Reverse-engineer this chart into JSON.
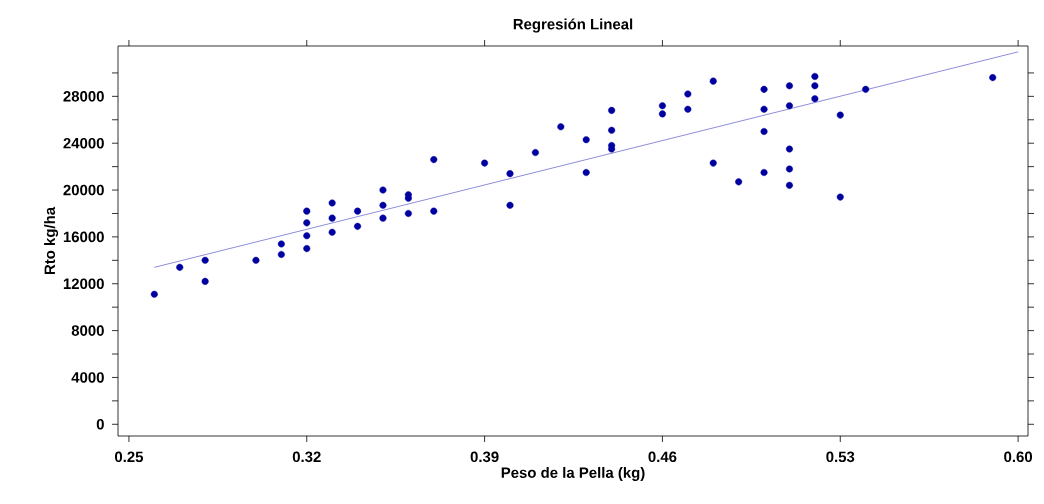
{
  "chart_data": {
    "type": "scatter",
    "title": "Regresión Lineal",
    "xlabel": "Peso de la Pella (kg)",
    "ylabel": "Rto kg/ha",
    "xlim": [
      0.2457,
      0.6039
    ],
    "ylim": [
      -1000,
      32300
    ],
    "xticks": [
      {
        "value": 0.25,
        "label": "0.25"
      },
      {
        "value": 0.32,
        "label": "0.32"
      },
      {
        "value": 0.39,
        "label": "0.39"
      },
      {
        "value": 0.46,
        "label": "0.46"
      },
      {
        "value": 0.53,
        "label": "0.53"
      },
      {
        "value": 0.6,
        "label": "0.60"
      }
    ],
    "yticks": [
      0,
      {
        "value": 2000,
        "label": null
      },
      4000,
      {
        "value": 6000,
        "label": null
      },
      8000,
      {
        "value": 10000,
        "label": null
      },
      12000,
      {
        "value": 14000,
        "label": null
      },
      16000,
      {
        "value": 18000,
        "label": null
      },
      20000,
      {
        "value": 22000,
        "label": null
      },
      24000,
      {
        "value": 26000,
        "label": null
      },
      28000,
      {
        "value": 30000,
        "label": null
      }
    ],
    "grid": false,
    "marker": "circle",
    "series": [
      {
        "color": "#0000a0",
        "x": [
          0.26,
          0.27,
          0.28,
          0.28,
          0.3,
          0.31,
          0.31,
          0.32,
          0.32,
          0.32,
          0.32,
          0.33,
          0.33,
          0.33,
          0.34,
          0.34,
          0.35,
          0.35,
          0.35,
          0.36,
          0.36,
          0.36,
          0.37,
          0.37,
          0.39,
          0.4,
          0.4,
          0.41,
          0.42,
          0.43,
          0.43,
          0.44,
          0.44,
          0.44,
          0.44,
          0.46,
          0.46,
          0.47,
          0.47,
          0.48,
          0.48,
          0.49,
          0.5,
          0.5,
          0.5,
          0.5,
          0.51,
          0.51,
          0.51,
          0.51,
          0.51,
          0.52,
          0.52,
          0.52,
          0.53,
          0.53,
          0.54,
          0.59
        ],
        "values": [
          11100,
          13400,
          14000,
          12200,
          14000,
          15400,
          14500,
          18200,
          17200,
          16100,
          15000,
          18900,
          17600,
          16400,
          18200,
          16900,
          20000,
          18700,
          17600,
          19600,
          19300,
          18000,
          22600,
          18200,
          22300,
          21400,
          18700,
          23200,
          25400,
          24300,
          21500,
          26800,
          25100,
          23800,
          23500,
          27200,
          26500,
          28200,
          26900,
          29300,
          22300,
          20700,
          28600,
          26900,
          25000,
          21500,
          28900,
          27200,
          23500,
          21800,
          20400,
          29700,
          28900,
          27800,
          26400,
          19400,
          28600,
          29600
        ]
      },
      {
        "type": "line",
        "marker": "none",
        "color": "#4040c8",
        "x": [
          0.26,
          0.6
        ],
        "values": [
          13400,
          31800
        ]
      }
    ]
  }
}
